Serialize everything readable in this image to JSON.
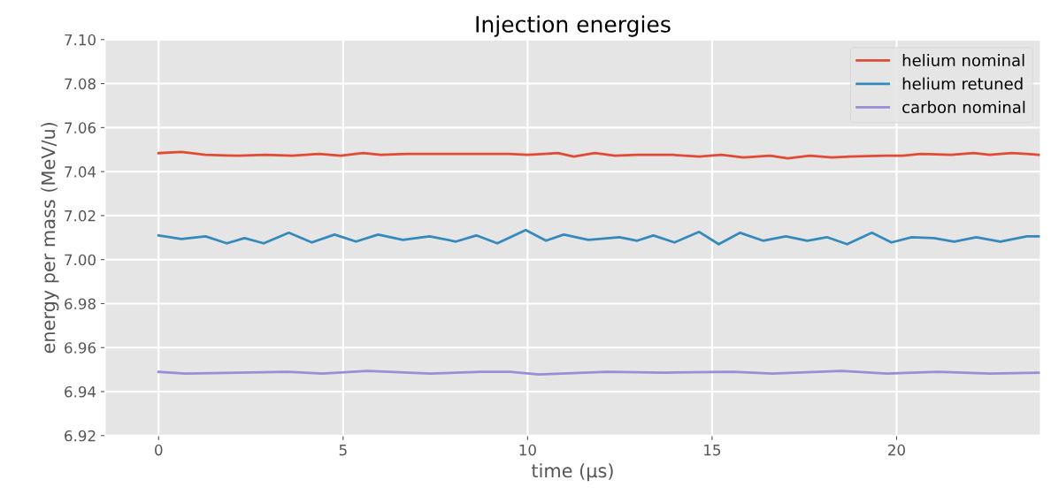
{
  "chart_data": {
    "type": "line",
    "title": "Injection energies",
    "xlabel": "time (µs)",
    "ylabel": "energy per mass (MeV/u)",
    "xlim": [
      -1.45,
      23.9
    ],
    "xticks": [
      0,
      5,
      10,
      15,
      20
    ],
    "ylim": [
      6.92,
      7.1
    ],
    "yticks": [
      {
        "value": 6.92,
        "label": "6.92"
      },
      {
        "value": 6.94,
        "label": "6.94"
      },
      {
        "value": 6.96,
        "label": "6.96"
      },
      {
        "value": 6.98,
        "label": "6.98"
      },
      {
        "value": 7.0,
        "label": "7.00"
      },
      {
        "value": 7.02,
        "label": "7.02"
      },
      {
        "value": 7.04,
        "label": "7.04"
      },
      {
        "value": 7.06,
        "label": "7.06"
      },
      {
        "value": 7.08,
        "label": "7.08"
      },
      {
        "value": 7.1,
        "label": "7.10"
      }
    ],
    "grid": true,
    "legend": "top right",
    "marker": "none",
    "line_style": "solid",
    "series": [
      {
        "name": "helium nominal",
        "color": "#e24a33",
        "x": [
          0,
          0.62,
          1.27,
          2.18,
          2.9,
          3.62,
          4.34,
          4.94,
          5.54,
          6.02,
          6.74,
          7.7,
          8.66,
          9.5,
          10.0,
          10.46,
          10.82,
          11.25,
          11.82,
          12.37,
          12.97,
          13.93,
          14.65,
          15.25,
          15.85,
          16.57,
          17.05,
          17.65,
          18.25,
          18.73,
          19.69,
          20.17,
          20.65,
          21.49,
          22.09,
          22.52,
          23.12,
          23.53,
          23.9
        ],
        "values": [
          7.0484,
          7.0489,
          7.0476,
          7.0472,
          7.0476,
          7.0472,
          7.048,
          7.0472,
          7.0484,
          7.0476,
          7.048,
          7.048,
          7.048,
          7.048,
          7.0476,
          7.048,
          7.0484,
          7.0468,
          7.0484,
          7.0472,
          7.0476,
          7.0476,
          7.0468,
          7.0476,
          7.0464,
          7.0472,
          7.046,
          7.0472,
          7.0464,
          7.0468,
          7.0472,
          7.0472,
          7.048,
          7.0476,
          7.0484,
          7.0476,
          7.0484,
          7.048,
          7.0476
        ]
      },
      {
        "name": "helium retuned",
        "color": "#348abd",
        "x": [
          0,
          0.62,
          1.27,
          1.85,
          2.33,
          2.85,
          3.53,
          4.15,
          4.77,
          5.35,
          5.95,
          6.62,
          7.34,
          8.06,
          8.61,
          9.18,
          9.95,
          10.5,
          10.98,
          11.65,
          12.49,
          12.97,
          13.41,
          13.98,
          14.65,
          15.18,
          15.76,
          16.38,
          17.0,
          17.58,
          18.11,
          18.66,
          19.33,
          19.86,
          20.41,
          21.01,
          21.56,
          22.16,
          22.81,
          23.53,
          23.9
        ],
        "values": [
          7.011,
          7.0094,
          7.0106,
          7.0074,
          7.0098,
          7.0074,
          7.0122,
          7.0078,
          7.0114,
          7.0082,
          7.0114,
          7.009,
          7.0106,
          7.0082,
          7.011,
          7.0074,
          7.0134,
          7.0086,
          7.0114,
          7.009,
          7.0102,
          7.0086,
          7.011,
          7.0078,
          7.0126,
          7.007,
          7.0122,
          7.0086,
          7.0106,
          7.0086,
          7.0102,
          7.007,
          7.0122,
          7.0078,
          7.0102,
          7.0098,
          7.0082,
          7.0102,
          7.0082,
          7.0106,
          7.0106
        ]
      },
      {
        "name": "carbon nominal",
        "color": "#988ed5",
        "x": [
          0,
          0.72,
          3.5,
          4.44,
          5.66,
          7.36,
          8.75,
          9.52,
          10.31,
          12.16,
          13.72,
          15.56,
          16.64,
          18.51,
          19.74,
          21.13,
          22.52,
          23.9
        ],
        "values": [
          6.949,
          6.9482,
          6.949,
          6.9482,
          6.9494,
          6.9482,
          6.949,
          6.949,
          6.9478,
          6.949,
          6.9486,
          6.949,
          6.9482,
          6.9494,
          6.9482,
          6.949,
          6.9482,
          6.9486
        ]
      }
    ]
  }
}
